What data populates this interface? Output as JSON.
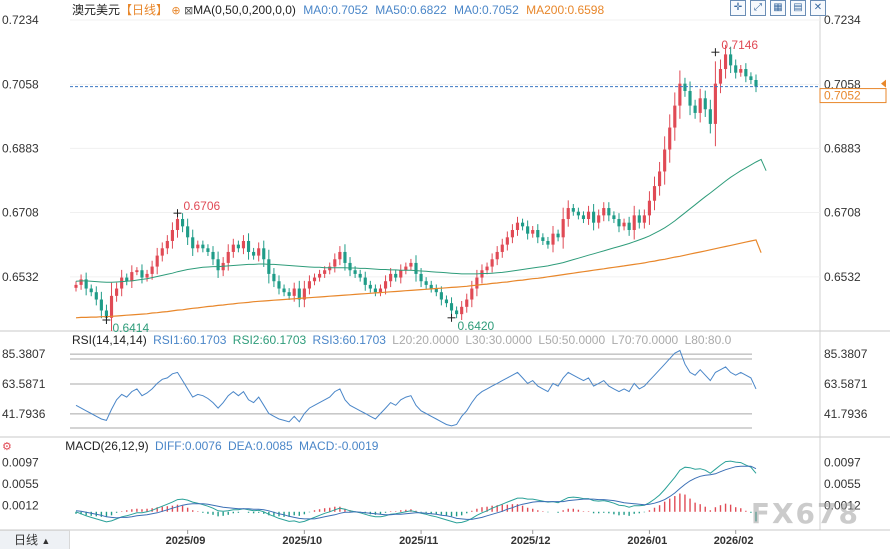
{
  "main": {
    "title": "澳元美元",
    "period_tag": "【日线】",
    "ma_spec": "MA(0,50,0,200,0,0)",
    "ma_values": [
      "MA0:0.7052",
      "MA50:0.6822",
      "MA0:0.7052",
      "MA200:0.6598"
    ],
    "current_price_label": "0.7052"
  },
  "rsi": {
    "spec": "RSI(14,14,14)",
    "values": [
      "RSI1:60.1703",
      "RSI2:60.1703",
      "RSI3:60.1703"
    ],
    "levels": [
      "L20:20.0000",
      "L30:30.0000",
      "L50:50.0000",
      "L70:70.0000",
      "L80:80.0"
    ]
  },
  "macd": {
    "spec": "MACD(26,12,9)",
    "values": [
      "DIFF:0.0076",
      "DEA:0.0085",
      "MACD:-0.0019"
    ]
  },
  "toolbar": {
    "icons": [
      "crosshair-icon",
      "expand-icon",
      "grid-icon",
      "bars-icon",
      "close-icon"
    ]
  },
  "period_tab": "日线",
  "watermark": "FX678",
  "colors": {
    "up": "#e04a55",
    "down": "#1f9c88",
    "ma50": "#2e9c7a",
    "ma200": "#e8872b",
    "rsi": "#4a86c8",
    "diff": "#2aa198",
    "dea": "#3b6fb5",
    "price_line": "#3b77c2"
  },
  "chart_data": [
    {
      "type": "candlestick",
      "title": "澳元美元 日线",
      "ylim": [
        0.6414,
        0.7234
      ],
      "yticks": [
        0.7234,
        0.7058,
        0.6883,
        0.6708,
        0.6532
      ],
      "ytick_labels": [
        "0.7234",
        "0.7058",
        "0.6883",
        "0.6708",
        "0.6532"
      ],
      "xtick_labels": [
        "2025/09",
        "2025/10",
        "2025/11",
        "2025/12",
        "2026/01",
        "2026/02"
      ],
      "annotations": [
        {
          "text": "0.6414",
          "type": "low"
        },
        {
          "text": "0.6706",
          "type": "high"
        },
        {
          "text": "0.6420",
          "type": "low"
        },
        {
          "text": "0.7146",
          "type": "high"
        }
      ],
      "price_line": 0.7052,
      "closes": [
        0.651,
        0.6525,
        0.65,
        0.649,
        0.647,
        0.644,
        0.642,
        0.648,
        0.65,
        0.653,
        0.652,
        0.6545,
        0.655,
        0.653,
        0.654,
        0.656,
        0.659,
        0.661,
        0.663,
        0.666,
        0.669,
        0.667,
        0.664,
        0.661,
        0.662,
        0.661,
        0.66,
        0.658,
        0.655,
        0.657,
        0.66,
        0.662,
        0.661,
        0.663,
        0.66,
        0.659,
        0.661,
        0.658,
        0.654,
        0.652,
        0.65,
        0.649,
        0.648,
        0.65,
        0.647,
        0.65,
        0.652,
        0.653,
        0.654,
        0.655,
        0.656,
        0.658,
        0.66,
        0.657,
        0.655,
        0.654,
        0.653,
        0.651,
        0.65,
        0.649,
        0.65,
        0.652,
        0.654,
        0.653,
        0.655,
        0.656,
        0.657,
        0.654,
        0.652,
        0.651,
        0.65,
        0.649,
        0.647,
        0.646,
        0.644,
        0.643,
        0.645,
        0.647,
        0.65,
        0.653,
        0.655,
        0.656,
        0.658,
        0.66,
        0.662,
        0.664,
        0.666,
        0.668,
        0.667,
        0.665,
        0.666,
        0.664,
        0.663,
        0.662,
        0.665,
        0.664,
        0.669,
        0.672,
        0.671,
        0.67,
        0.669,
        0.671,
        0.668,
        0.67,
        0.672,
        0.67,
        0.669,
        0.667,
        0.668,
        0.666,
        0.67,
        0.668,
        0.67,
        0.674,
        0.678,
        0.682,
        0.688,
        0.694,
        0.7,
        0.706,
        0.704,
        0.7,
        0.698,
        0.702,
        0.699,
        0.695,
        0.706,
        0.71,
        0.714,
        0.711,
        0.709,
        0.71,
        0.708,
        0.707,
        0.7052
      ],
      "ma50": [
        0.652,
        0.6521,
        0.6521,
        0.652,
        0.6519,
        0.6518,
        0.6517,
        0.6517,
        0.6518,
        0.6519,
        0.652,
        0.6521,
        0.6523,
        0.6525,
        0.6527,
        0.653,
        0.6533,
        0.6536,
        0.6539,
        0.6542,
        0.6546,
        0.6549,
        0.6552,
        0.6554,
        0.6556,
        0.6558,
        0.6559,
        0.656,
        0.656,
        0.6561,
        0.6562,
        0.6563,
        0.6564,
        0.6565,
        0.6566,
        0.6566,
        0.6567,
        0.6567,
        0.6566,
        0.6566,
        0.6565,
        0.6564,
        0.6563,
        0.6562,
        0.6561,
        0.656,
        0.6559,
        0.6558,
        0.6558,
        0.6557,
        0.6557,
        0.6557,
        0.6557,
        0.6557,
        0.6556,
        0.6556,
        0.6555,
        0.6555,
        0.6554,
        0.6553,
        0.6552,
        0.6552,
        0.6551,
        0.6551,
        0.655,
        0.655,
        0.655,
        0.6549,
        0.6548,
        0.6547,
        0.6546,
        0.6545,
        0.6544,
        0.6543,
        0.6542,
        0.6541,
        0.654,
        0.654,
        0.654,
        0.654,
        0.6541,
        0.6541,
        0.6542,
        0.6543,
        0.6544,
        0.6546,
        0.6548,
        0.655,
        0.6552,
        0.6554,
        0.6556,
        0.6558,
        0.656,
        0.6562,
        0.6565,
        0.6568,
        0.6571,
        0.6575,
        0.6579,
        0.6583,
        0.6587,
        0.6591,
        0.6595,
        0.6599,
        0.6603,
        0.6607,
        0.6611,
        0.6615,
        0.6619,
        0.6623,
        0.6628,
        0.6633,
        0.6638,
        0.6644,
        0.6651,
        0.6658,
        0.6666,
        0.6675,
        0.6685,
        0.6696,
        0.6707,
        0.6718,
        0.6729,
        0.674,
        0.6751,
        0.6761,
        0.6772,
        0.6783,
        0.6794,
        0.6804,
        0.6813,
        0.6822,
        0.683,
        0.6838,
        0.6846,
        0.6853,
        0.6822
      ],
      "ma200": [
        0.642,
        0.6421,
        0.6421,
        0.6422,
        0.6422,
        0.6423,
        0.6423,
        0.6424,
        0.6425,
        0.6426,
        0.6427,
        0.6428,
        0.6429,
        0.643,
        0.6431,
        0.6433,
        0.6434,
        0.6436,
        0.6437,
        0.6439,
        0.6441,
        0.6442,
        0.6444,
        0.6446,
        0.6447,
        0.6449,
        0.6451,
        0.6452,
        0.6454,
        0.6455,
        0.6457,
        0.6458,
        0.646,
        0.6461,
        0.6462,
        0.6464,
        0.6465,
        0.6466,
        0.6467,
        0.6468,
        0.6469,
        0.647,
        0.6471,
        0.6472,
        0.6473,
        0.6474,
        0.6475,
        0.6476,
        0.6477,
        0.6478,
        0.6479,
        0.648,
        0.6481,
        0.6482,
        0.6483,
        0.6484,
        0.6485,
        0.6486,
        0.6487,
        0.6488,
        0.6489,
        0.649,
        0.6491,
        0.6492,
        0.6493,
        0.6494,
        0.6495,
        0.6496,
        0.6497,
        0.6498,
        0.6499,
        0.65,
        0.6501,
        0.6502,
        0.6503,
        0.6504,
        0.6505,
        0.6506,
        0.6508,
        0.6509,
        0.6511,
        0.6512,
        0.6514,
        0.6515,
        0.6517,
        0.6518,
        0.652,
        0.6522,
        0.6523,
        0.6525,
        0.6527,
        0.6528,
        0.653,
        0.6532,
        0.6534,
        0.6536,
        0.6538,
        0.654,
        0.6542,
        0.6544,
        0.6546,
        0.6548,
        0.655,
        0.6552,
        0.6554,
        0.6556,
        0.6558,
        0.656,
        0.6562,
        0.6564,
        0.6566,
        0.6568,
        0.657,
        0.6573,
        0.6575,
        0.6578,
        0.658,
        0.6583,
        0.6586,
        0.6588,
        0.6591,
        0.6594,
        0.6597,
        0.66,
        0.6603,
        0.6606,
        0.6609,
        0.6612,
        0.6615,
        0.6618,
        0.6621,
        0.6624,
        0.6627,
        0.663,
        0.6633,
        0.6598
      ]
    },
    {
      "type": "line",
      "title": "RSI(14,14,14)",
      "ylim": [
        30,
        92
      ],
      "yticks": [
        85.3807,
        63.5871,
        41.7936
      ],
      "ytick_labels": [
        "85.3807",
        "63.5871",
        "41.7936"
      ],
      "series": [
        {
          "name": "RSI1",
          "values": [
            48,
            46,
            44,
            42,
            40,
            38,
            37,
            45,
            52,
            56,
            54,
            58,
            60,
            55,
            57,
            60,
            64,
            67,
            68,
            71,
            72,
            66,
            60,
            54,
            56,
            55,
            53,
            50,
            46,
            50,
            55,
            58,
            55,
            58,
            52,
            50,
            54,
            48,
            42,
            40,
            38,
            37,
            36,
            40,
            36,
            42,
            46,
            48,
            50,
            52,
            54,
            58,
            60,
            52,
            48,
            46,
            44,
            42,
            40,
            38,
            42,
            46,
            50,
            48,
            52,
            54,
            55,
            48,
            44,
            42,
            40,
            38,
            36,
            34,
            33,
            34,
            40,
            44,
            50,
            55,
            58,
            60,
            62,
            64,
            66,
            68,
            70,
            72,
            68,
            64,
            66,
            62,
            60,
            58,
            64,
            62,
            68,
            72,
            70,
            68,
            66,
            68,
            62,
            64,
            66,
            62,
            60,
            58,
            60,
            58,
            64,
            60,
            62,
            66,
            70,
            74,
            78,
            82,
            86,
            88,
            78,
            72,
            70,
            74,
            70,
            66,
            72,
            74,
            76,
            72,
            70,
            72,
            70,
            68,
            60
          ]
        }
      ]
    },
    {
      "type": "bar",
      "title": "MACD(26,12,9)",
      "ylim": [
        -0.0032,
        0.0112
      ],
      "yticks": [
        0.0097,
        0.0055,
        0.0012
      ],
      "ytick_labels": [
        "0.0097",
        "0.0055",
        "0.0012"
      ],
      "series": [
        {
          "name": "DIFF",
          "values": [
            0.0,
            -0.0004,
            -0.0008,
            -0.0011,
            -0.0014,
            -0.0017,
            -0.002,
            -0.0018,
            -0.0014,
            -0.001,
            -0.0008,
            -0.0005,
            -0.0002,
            -0.0002,
            0.0,
            0.0003,
            0.0007,
            0.0011,
            0.0015,
            0.0019,
            0.0024,
            0.0025,
            0.0023,
            0.0019,
            0.0017,
            0.0014,
            0.0011,
            0.0007,
            0.0002,
            0.0001,
            0.0002,
            0.0004,
            0.0004,
            0.0006,
            0.0004,
            0.0002,
            0.0003,
            0.0,
            -0.0005,
            -0.0009,
            -0.0013,
            -0.0016,
            -0.0019,
            -0.0018,
            -0.0021,
            -0.0019,
            -0.0015,
            -0.0011,
            -0.0007,
            -0.0003,
            0.0,
            0.0004,
            0.0007,
            0.0005,
            0.0002,
            0.0,
            -0.0002,
            -0.0005,
            -0.0008,
            -0.001,
            -0.001,
            -0.0008,
            -0.0005,
            -0.0004,
            -0.0002,
            0.0,
            0.0002,
            0.0,
            -0.0003,
            -0.0005,
            -0.0008,
            -0.001,
            -0.0013,
            -0.0016,
            -0.0019,
            -0.0022,
            -0.0021,
            -0.0018,
            -0.0013,
            -0.0007,
            -0.0002,
            0.0002,
            0.0007,
            0.0011,
            0.0015,
            0.0019,
            0.0023,
            0.0027,
            0.0027,
            0.0025,
            0.0025,
            0.0023,
            0.0021,
            0.0019,
            0.002,
            0.0018,
            0.0023,
            0.0028,
            0.0029,
            0.0028,
            0.0026,
            0.0026,
            0.0022,
            0.0021,
            0.0022,
            0.002,
            0.0017,
            0.0013,
            0.0012,
            0.0009,
            0.0012,
            0.0012,
            0.0013,
            0.0018,
            0.0025,
            0.0033,
            0.0044,
            0.0056,
            0.0068,
            0.0082,
            0.0088,
            0.0087,
            0.0084,
            0.0085,
            0.0082,
            0.0076,
            0.0084,
            0.0092,
            0.0099,
            0.01,
            0.0098,
            0.0097,
            0.0092,
            0.0088,
            0.0076
          ]
        },
        {
          "name": "DEA",
          "values": [
            0.0002,
            0.0001,
            -0.0001,
            -0.0003,
            -0.0005,
            -0.0007,
            -0.001,
            -0.0011,
            -0.0012,
            -0.0011,
            -0.0011,
            -0.001,
            -0.0008,
            -0.0007,
            -0.0006,
            -0.0004,
            -0.0002,
            0.0001,
            0.0004,
            0.0007,
            0.001,
            0.0013,
            0.0015,
            0.0016,
            0.0016,
            0.0016,
            0.0015,
            0.0013,
            0.0011,
            0.0009,
            0.0008,
            0.0007,
            0.0006,
            0.0006,
            0.0006,
            0.0005,
            0.0005,
            0.0004,
            0.0002,
            -0.0001,
            -0.0004,
            -0.0006,
            -0.0009,
            -0.0011,
            -0.0013,
            -0.0014,
            -0.0014,
            -0.0014,
            -0.0012,
            -0.001,
            -0.0008,
            -0.0006,
            -0.0003,
            -0.0001,
            -0.0001,
            0.0,
            -0.0001,
            -0.0002,
            -0.0003,
            -0.0004,
            -0.0005,
            -0.0006,
            -0.0006,
            -0.0005,
            -0.0005,
            -0.0004,
            -0.0003,
            -0.0002,
            -0.0002,
            -0.0003,
            -0.0004,
            -0.0005,
            -0.0007,
            -0.0008,
            -0.001,
            -0.0013,
            -0.0014,
            -0.0015,
            -0.0015,
            -0.0013,
            -0.0011,
            -0.0008,
            -0.0005,
            -0.0002,
            0.0001,
            0.0005,
            0.0008,
            0.0012,
            0.0015,
            0.0017,
            0.0019,
            0.002,
            0.002,
            0.002,
            0.002,
            0.002,
            0.002,
            0.0022,
            0.0023,
            0.0024,
            0.0025,
            0.0025,
            0.0025,
            0.0024,
            0.0024,
            0.0023,
            0.0022,
            0.002,
            0.0018,
            0.0017,
            0.0016,
            0.0015,
            0.0014,
            0.0015,
            0.0017,
            0.002,
            0.0024,
            0.003,
            0.0037,
            0.0046,
            0.0054,
            0.0061,
            0.0066,
            0.007,
            0.0072,
            0.0073,
            0.0075,
            0.0079,
            0.0083,
            0.0086,
            0.0089,
            0.009,
            0.009,
            0.009,
            0.0085
          ]
        }
      ],
      "histogram": [
        -0.0004,
        -0.0005,
        -0.0007,
        -0.0008,
        -0.0009,
        -0.001,
        -0.001,
        -0.0007,
        -0.0002,
        0.0001,
        0.0003,
        0.0005,
        0.0006,
        0.0005,
        0.0006,
        0.0007,
        0.0009,
        0.001,
        0.0011,
        0.0012,
        0.0014,
        0.0012,
        0.0008,
        0.0003,
        0.0001,
        -0.0002,
        -0.0004,
        -0.0006,
        -0.0009,
        -0.0008,
        -0.0006,
        -0.0003,
        -0.0002,
        0.0,
        -0.0002,
        -0.0003,
        -0.0002,
        -0.0004,
        -0.0007,
        -0.0008,
        -0.0009,
        -0.001,
        -0.001,
        -0.0007,
        -0.0008,
        -0.0005,
        -0.0001,
        0.0003,
        0.0005,
        0.0007,
        0.0008,
        0.001,
        0.001,
        0.0006,
        0.0003,
        0.0,
        -0.0001,
        -0.0003,
        -0.0005,
        -0.0006,
        -0.0005,
        -0.0002,
        0.0001,
        0.0001,
        0.0003,
        0.0004,
        0.0005,
        0.0002,
        -0.0001,
        -0.0002,
        -0.0004,
        -0.0005,
        -0.0006,
        -0.0008,
        -0.0009,
        -0.0009,
        -0.0007,
        -0.0003,
        0.0002,
        0.0006,
        0.0009,
        0.001,
        0.0012,
        0.0013,
        0.0014,
        0.0014,
        0.0015,
        0.0015,
        0.0012,
        0.0008,
        0.0006,
        0.0003,
        0.0001,
        -0.0001,
        0.0,
        -0.0002,
        0.0003,
        0.0006,
        0.0006,
        0.0004,
        0.0001,
        0.0001,
        -0.0003,
        -0.0003,
        -0.0002,
        -0.0003,
        -0.0005,
        -0.0007,
        -0.0006,
        -0.0008,
        -0.0004,
        -0.0003,
        -0.0001,
        0.0003,
        0.0008,
        0.0013,
        0.002,
        0.0026,
        0.0031,
        0.0036,
        0.0034,
        0.0026,
        0.0018,
        0.0015,
        0.001,
        0.0003,
        0.0009,
        0.0013,
        0.0016,
        0.0014,
        0.0009,
        0.0007,
        0.0002,
        -0.0002,
        -0.0019
      ]
    }
  ]
}
